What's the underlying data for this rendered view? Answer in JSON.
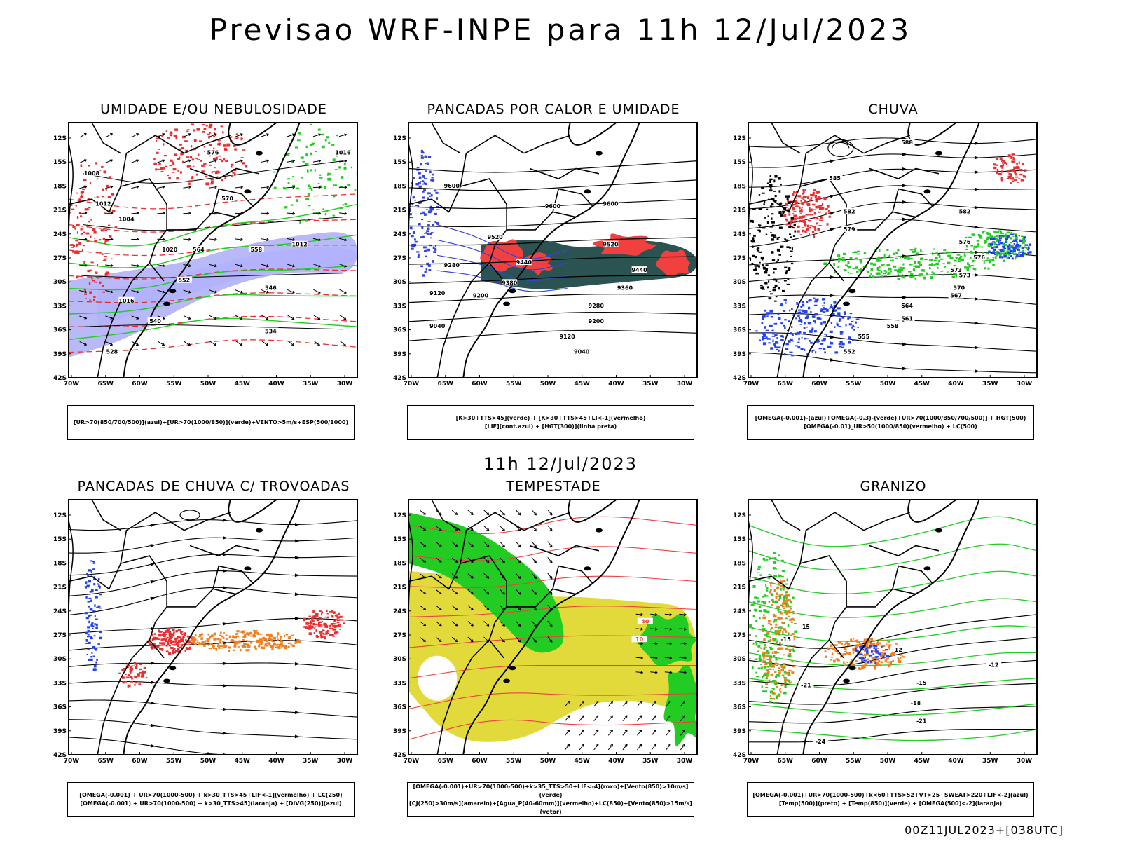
{
  "header": {
    "title": "Previsao WRF-INPE  para 11h 12/Jul/2023",
    "subtitle": "11h 12/Jul/2023",
    "footer": "00Z11JUL2023+[038UTC]"
  },
  "axes": {
    "lat": [
      "12S",
      "15S",
      "18S",
      "21S",
      "24S",
      "27S",
      "30S",
      "33S",
      "36S",
      "39S",
      "42S"
    ],
    "lon": [
      "70W",
      "65W",
      "60W",
      "55W",
      "50W",
      "45W",
      "40W",
      "35W",
      "30W"
    ]
  },
  "panels": [
    {
      "title": "UMIDADE E/OU NEBULOSIDADE",
      "legend": [
        "[UR>70(850/700/500)](azul)+[UR>70(1000/850)](verde)+VENTO>5m/s+ESP(500/1000)"
      ],
      "labels": [
        "1008",
        "1012",
        "1016",
        "1020",
        "1004",
        "576",
        "570",
        "564",
        "558",
        "552",
        "546",
        "540",
        "534",
        "528",
        "1016",
        "1012"
      ]
    },
    {
      "title": "PANCADAS POR CALOR E UMIDADE",
      "legend": [
        "[K>30+TTS>45](verde) + [K>30+TTS>45+LI<-1](vermelho)",
        "[LIF](cont.azul) + [HGT(300)](linha preta)"
      ],
      "labels": [
        "9600",
        "9600",
        "9600",
        "9520",
        "9520",
        "9440",
        "9440",
        "9380",
        "9360",
        "9280",
        "9280",
        "9200",
        "9200",
        "9120",
        "9120",
        "9040",
        "9040"
      ]
    },
    {
      "title": "CHUVA",
      "legend": [
        "[OMEGA(-0.001)-(azul)+OMEGA(-0.3)-(verde)+UR>70(1000/850/700/500)] + HGT(500)",
        "[OMEGA(-0.01)_UR>50(1000/850)(vermelho) + LC(500)"
      ],
      "labels": [
        "588",
        "585",
        "582",
        "582",
        "579",
        "576",
        "573",
        "570",
        "567",
        "564",
        "561",
        "558",
        "555",
        "552",
        "576",
        "573"
      ]
    },
    {
      "title": "PANCADAS DE CHUVA C/ TROVOADAS",
      "legend": [
        "[OMEGA(-0.001) + UR>70(1000-500) + k>30_TTS>45+LIF<-1](vermelho) + LC(250)",
        "[OMEGA(-0.001) + UR>70(1000-500) + k>30_TTS>45](laranja) + [DIVG(250)](azul)"
      ],
      "labels": []
    },
    {
      "title": "TEMPESTADE",
      "legend": [
        "[OMEGA(-0.001)+UR>70(1000-500)+k>35_TTS>50+LIF<-4](roxo)+[Vento(850)>10m/s](verde)",
        "[CJ(250)>30m/s](amarelo)+[Agua_P(40-60mm)](vermelho)+LC(850)+[Vento(850)>15m/s](vetor)"
      ],
      "labels": [
        "40",
        "10"
      ]
    },
    {
      "title": "GRANIZO",
      "legend": [
        "[OMEGA(-0.001)+UR>70(1000-500)+k<60+TTS>52+VT>25+SWEAT>220+LIF<-2](azul)",
        "[Temp(500)](preto) + [Temp(850)](verde) + [OMEGA(500)<-2](laranja)"
      ],
      "labels": [
        "-12",
        "-15",
        "-18",
        "-21",
        "-24",
        "-21",
        "-15",
        "12",
        "15"
      ]
    }
  ]
}
